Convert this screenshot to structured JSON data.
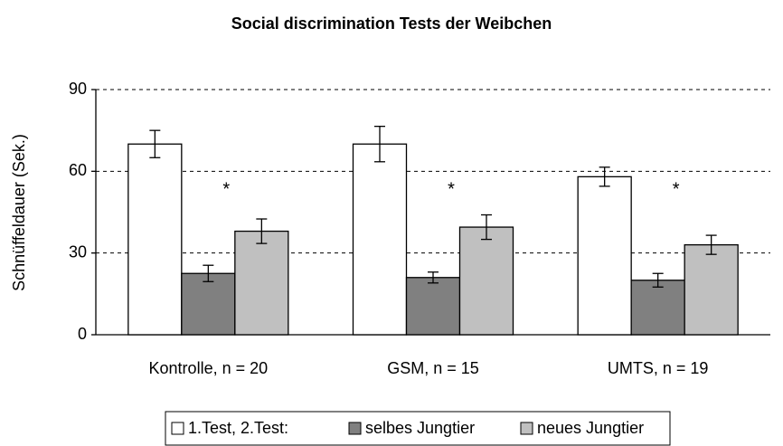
{
  "chart_data": {
    "type": "bar",
    "title": "Social discrimination Tests der Weibchen",
    "y_label": "Schnüffeldauer (Sek.)",
    "categories": [
      "Kontrolle, n = 20",
      "GSM, n = 15",
      "UMTS, n = 19"
    ],
    "series": [
      {
        "name": "1.Test, 2.Test:",
        "color": "#ffffff",
        "values": [
          70,
          70,
          58
        ],
        "errors": [
          5,
          6.5,
          3.5
        ]
      },
      {
        "name": "selbes Jungtier",
        "color": "#808080",
        "values": [
          22.5,
          21,
          20
        ],
        "errors": [
          3,
          2,
          2.5
        ]
      },
      {
        "name": "neues Jungtier",
        "color": "#c0c0c0",
        "values": [
          38,
          39.5,
          33
        ],
        "errors": [
          4.5,
          4.5,
          3.5
        ]
      }
    ],
    "annotations": [
      "*",
      "*",
      "*"
    ],
    "ylim": [
      0,
      90
    ],
    "yticks": [
      0,
      30,
      60,
      90
    ],
    "grid": true
  }
}
